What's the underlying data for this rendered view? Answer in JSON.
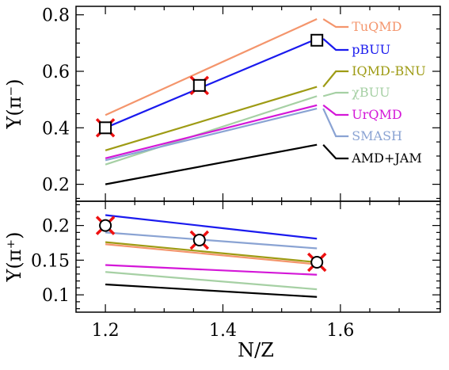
{
  "chart_data": [
    {
      "type": "line",
      "xlabel": "",
      "ylabel": "Y(π⁻)",
      "xlim": [
        1.15,
        1.77
      ],
      "ylim": [
        0.14,
        0.83
      ],
      "xticks": [
        1.2,
        1.4,
        1.6
      ],
      "yticks": [
        0.2,
        0.4,
        0.6,
        0.8
      ],
      "yticklabels": [
        "0.2",
        "0.4",
        "0.6",
        "0.8"
      ],
      "x": [
        1.2,
        1.56
      ],
      "series": [
        {
          "name": "TuQMD",
          "color": "#f4956c",
          "values": [
            0.445,
            0.785
          ]
        },
        {
          "name": "pBUU",
          "color": "#1a1aee",
          "values": [
            0.4,
            0.715
          ]
        },
        {
          "name": "IQMD-BNU",
          "color": "#9e9b14",
          "values": [
            0.32,
            0.545
          ]
        },
        {
          "name": "χBUU",
          "color": "#a6d0a4",
          "values": [
            0.27,
            0.512
          ]
        },
        {
          "name": "UrQMD",
          "color": "#d417d8",
          "values": [
            0.292,
            0.48
          ]
        },
        {
          "name": "SMASH",
          "color": "#8aa3d3",
          "values": [
            0.285,
            0.468
          ]
        },
        {
          "name": "AMD+JAM",
          "color": "#000000",
          "values": [
            0.2,
            0.34
          ]
        }
      ],
      "markers": [
        {
          "x": 1.2,
          "y": 0.4,
          "type": "square-with-red-x"
        },
        {
          "x": 1.36,
          "y": 0.55,
          "type": "square-with-red-x"
        },
        {
          "x": 1.56,
          "y": 0.71,
          "type": "square"
        }
      ],
      "grid": false,
      "legend": "right"
    },
    {
      "type": "line",
      "xlabel": "N/Z",
      "ylabel": "Y(π⁺)",
      "xlim": [
        1.15,
        1.77
      ],
      "ylim": [
        0.075,
        0.235
      ],
      "xticks": [
        1.2,
        1.4,
        1.6
      ],
      "xticklabels": [
        "1.2",
        "1.4",
        "1.6"
      ],
      "yticks": [
        0.1,
        0.15,
        0.2
      ],
      "yticklabels": [
        "0.1",
        "0.15",
        "0.2"
      ],
      "x": [
        1.2,
        1.56
      ],
      "series": [
        {
          "name": "pBUU",
          "color": "#1a1aee",
          "values": [
            0.215,
            0.181
          ]
        },
        {
          "name": "SMASH",
          "color": "#8aa3d3",
          "values": [
            0.19,
            0.167
          ]
        },
        {
          "name": "IQMD-BNU",
          "color": "#9e9b14",
          "values": [
            0.176,
            0.147
          ]
        },
        {
          "name": "TuQMD",
          "color": "#f4956c",
          "values": [
            0.173,
            0.144
          ]
        },
        {
          "name": "UrQMD",
          "color": "#d417d8",
          "values": [
            0.143,
            0.129
          ]
        },
        {
          "name": "χBUU",
          "color": "#a6d0a4",
          "values": [
            0.133,
            0.108
          ]
        },
        {
          "name": "AMD+JAM",
          "color": "#000000",
          "values": [
            0.115,
            0.097
          ]
        }
      ],
      "markers": [
        {
          "x": 1.2,
          "y": 0.2,
          "type": "circle-with-red-x"
        },
        {
          "x": 1.36,
          "y": 0.179,
          "type": "circle-with-red-x"
        },
        {
          "x": 1.56,
          "y": 0.147,
          "type": "circle-with-red-x"
        }
      ],
      "grid": false,
      "legend": "none"
    }
  ]
}
